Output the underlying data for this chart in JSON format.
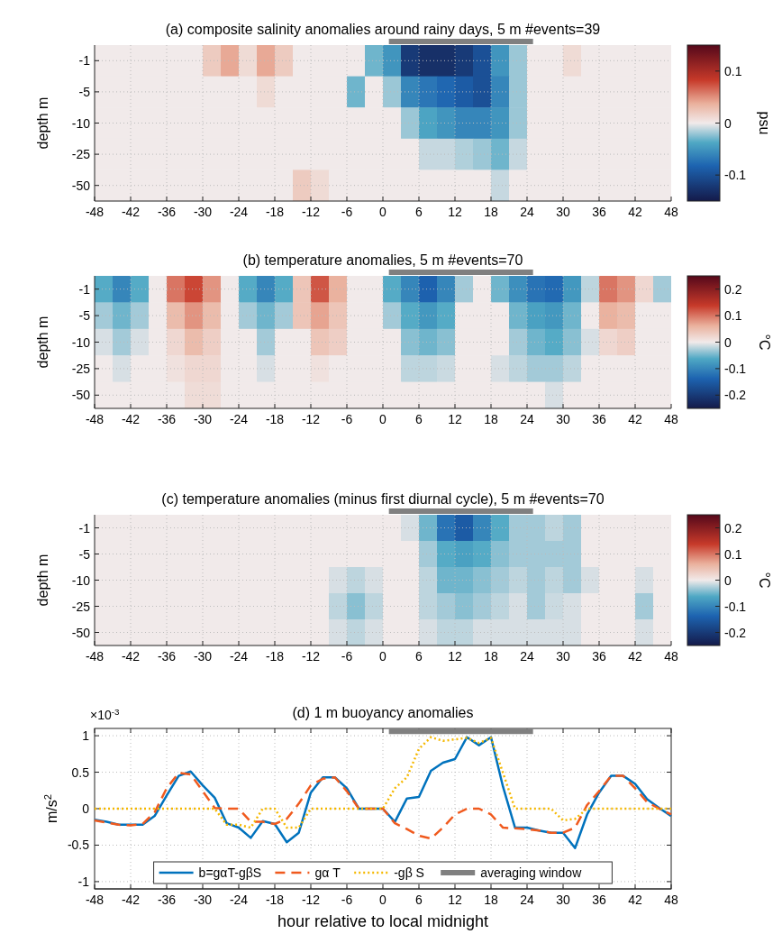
{
  "chart_data": [
    {
      "type": "heatmap",
      "title": "(a) composite salinity anomalies around rainy days, 5 m #events=39",
      "ylabel": "depth m",
      "clabel": "psu",
      "x": [
        -46.5,
        -43.5,
        -40.5,
        -37.5,
        -34.5,
        -31.5,
        -28.5,
        -25.5,
        -22.5,
        -19.5,
        -16.5,
        -13.5,
        -10.5,
        -7.5,
        -4.5,
        -1.5,
        1.5,
        4.5,
        7.5,
        10.5,
        13.5,
        16.5,
        19.5,
        22.5,
        25.5,
        28.5,
        31.5,
        34.5,
        37.5,
        40.5,
        43.5,
        46.5
      ],
      "xlim": [
        -48,
        48
      ],
      "xticks": [
        -48,
        -42,
        -36,
        -30,
        -24,
        -18,
        -12,
        -6,
        0,
        6,
        12,
        18,
        24,
        30,
        36,
        42,
        48
      ],
      "y_categories": [
        "-1",
        "-5",
        "-10",
        "-25",
        "-50"
      ],
      "cells": [
        [
          0,
          0,
          0,
          0,
          0,
          0,
          0.02,
          0.04,
          0.01,
          0.04,
          0.02,
          0,
          0,
          0,
          0,
          -0.03,
          -0.05,
          -0.12,
          -0.13,
          -0.13,
          -0.12,
          -0.1,
          -0.05,
          -0.02,
          0,
          0,
          0.01,
          0,
          0,
          0,
          0,
          0
        ],
        [
          0,
          0,
          0,
          0,
          0,
          0,
          0,
          0,
          0,
          0.01,
          0,
          0,
          0,
          0,
          -0.03,
          0,
          -0.02,
          -0.06,
          -0.07,
          -0.08,
          -0.09,
          -0.1,
          -0.06,
          -0.02,
          0,
          0,
          0,
          0,
          0,
          0,
          0,
          0
        ],
        [
          0,
          0,
          0,
          0,
          0,
          0,
          0,
          0,
          0,
          0,
          0,
          0,
          0,
          0,
          0,
          0,
          0,
          -0.02,
          -0.04,
          -0.05,
          -0.06,
          -0.06,
          -0.05,
          -0.02,
          0,
          0,
          0,
          0,
          0,
          0,
          0,
          0
        ],
        [
          0,
          0,
          0,
          0,
          0,
          0,
          0,
          0,
          0,
          0,
          0,
          0,
          0,
          0,
          0,
          0,
          0,
          0,
          -0.01,
          -0.01,
          -0.015,
          -0.02,
          -0.03,
          -0.01,
          0,
          0,
          0,
          0,
          0,
          0,
          0,
          0
        ],
        [
          0,
          0,
          0,
          0,
          0,
          0,
          0,
          0,
          0,
          0,
          0,
          0.02,
          0.01,
          0,
          0,
          0,
          0,
          0,
          0,
          0,
          0,
          0,
          -0.01,
          0,
          0,
          0,
          0,
          0,
          0,
          0,
          0,
          0
        ]
      ],
      "clim": [
        -0.15,
        0.15
      ],
      "cticks": [
        -0.1,
        0,
        0.1
      ],
      "grid": true
    },
    {
      "type": "heatmap",
      "title": "(b) temperature anomalies, 5 m #events=70",
      "ylabel": "depth m",
      "clabel": "°C",
      "x": [
        -46.5,
        -43.5,
        -40.5,
        -37.5,
        -34.5,
        -31.5,
        -28.5,
        -25.5,
        -22.5,
        -19.5,
        -16.5,
        -13.5,
        -10.5,
        -7.5,
        -4.5,
        -1.5,
        1.5,
        4.5,
        7.5,
        10.5,
        13.5,
        16.5,
        19.5,
        22.5,
        25.5,
        28.5,
        31.5,
        34.5,
        37.5,
        40.5,
        43.5,
        46.5
      ],
      "xlim": [
        -48,
        48
      ],
      "xticks": [
        -48,
        -42,
        -36,
        -30,
        -24,
        -18,
        -12,
        -6,
        0,
        6,
        12,
        18,
        24,
        30,
        36,
        42,
        48
      ],
      "y_categories": [
        "-1",
        "-5",
        "-10",
        "-25",
        "-50"
      ],
      "cells": [
        [
          -0.06,
          -0.1,
          -0.06,
          0,
          0.1,
          0.13,
          0.08,
          0,
          -0.06,
          -0.1,
          -0.06,
          0.04,
          0.12,
          0.06,
          0,
          0,
          -0.06,
          -0.1,
          -0.14,
          -0.1,
          -0.03,
          0,
          -0.05,
          -0.09,
          -0.12,
          -0.13,
          -0.08,
          -0.02,
          0.1,
          0.08,
          0.02,
          -0.03
        ],
        [
          -0.03,
          -0.05,
          -0.03,
          0,
          0.05,
          0.08,
          0.05,
          0,
          -0.03,
          -0.05,
          -0.03,
          0.04,
          0.07,
          0.04,
          0,
          0,
          -0.03,
          -0.06,
          -0.08,
          -0.06,
          0,
          0,
          0,
          -0.05,
          -0.07,
          -0.08,
          -0.05,
          0,
          0.06,
          0.05,
          0,
          0
        ],
        [
          -0.01,
          -0.03,
          -0.01,
          0,
          0.02,
          0.05,
          0.03,
          0,
          0,
          -0.03,
          0,
          0,
          0.04,
          0.03,
          0,
          0,
          0,
          -0.04,
          -0.05,
          -0.04,
          0,
          0,
          0,
          -0.03,
          -0.05,
          -0.06,
          -0.04,
          -0.01,
          0.02,
          0.03,
          0,
          0
        ],
        [
          0,
          -0.01,
          0,
          0,
          0.01,
          0.02,
          0.02,
          0,
          0,
          -0.01,
          0,
          0,
          0.01,
          0,
          0,
          0,
          0,
          -0.02,
          -0.02,
          -0.015,
          0,
          0,
          -0.01,
          -0.02,
          -0.03,
          -0.03,
          -0.02,
          0,
          0,
          0,
          0,
          0
        ],
        [
          0,
          0,
          0,
          0,
          0,
          0.015,
          0.015,
          0,
          0,
          0,
          0,
          0,
          0,
          0,
          0,
          0,
          0,
          0,
          0,
          0,
          0,
          0,
          0,
          0,
          0,
          -0.01,
          0,
          0,
          0,
          0,
          0,
          0
        ]
      ],
      "clim": [
        -0.25,
        0.25
      ],
      "cticks": [
        -0.2,
        -0.1,
        0,
        0.1,
        0.2
      ],
      "grid": true
    },
    {
      "type": "heatmap",
      "title": "(c) temperature anomalies (minus first diurnal cycle), 5 m #events=70",
      "ylabel": "depth m",
      "clabel": "°C",
      "x": [
        -46.5,
        -43.5,
        -40.5,
        -37.5,
        -34.5,
        -31.5,
        -28.5,
        -25.5,
        -22.5,
        -19.5,
        -16.5,
        -13.5,
        -10.5,
        -7.5,
        -4.5,
        -1.5,
        1.5,
        4.5,
        7.5,
        10.5,
        13.5,
        16.5,
        19.5,
        22.5,
        25.5,
        28.5,
        31.5,
        34.5,
        37.5,
        40.5,
        43.5,
        46.5
      ],
      "xlim": [
        -48,
        48
      ],
      "xticks": [
        -48,
        -42,
        -36,
        -30,
        -24,
        -18,
        -12,
        -6,
        0,
        6,
        12,
        18,
        24,
        30,
        36,
        42,
        48
      ],
      "y_categories": [
        "-1",
        "-5",
        "-10",
        "-25",
        "-50"
      ],
      "cells": [
        [
          0,
          0,
          0,
          0,
          0,
          0,
          0,
          0,
          0,
          0,
          0,
          0,
          0,
          0,
          0,
          0,
          0,
          -0.01,
          -0.05,
          -0.12,
          -0.15,
          -0.1,
          -0.06,
          -0.03,
          -0.03,
          -0.02,
          -0.03,
          0,
          0,
          0,
          0,
          0
        ],
        [
          0,
          0,
          0,
          0,
          0,
          0,
          0,
          0,
          0,
          0,
          0,
          0,
          0,
          0,
          0,
          0,
          0,
          0,
          -0.03,
          -0.06,
          -0.07,
          -0.06,
          -0.04,
          -0.03,
          -0.03,
          -0.03,
          -0.03,
          0,
          0,
          0,
          0,
          0
        ],
        [
          0,
          0,
          0,
          0,
          0,
          0,
          0,
          0,
          0,
          0,
          0,
          0,
          0,
          -0.01,
          -0.02,
          -0.01,
          0,
          0,
          -0.02,
          -0.05,
          -0.05,
          -0.04,
          -0.03,
          -0.02,
          -0.03,
          -0.02,
          -0.03,
          -0.01,
          0,
          0,
          -0.01,
          0
        ],
        [
          0,
          0,
          0,
          0,
          0,
          0,
          0,
          0,
          0,
          0,
          0,
          0,
          0,
          -0.02,
          -0.04,
          -0.02,
          0,
          0,
          -0.02,
          -0.03,
          -0.04,
          -0.03,
          -0.02,
          -0.01,
          -0.03,
          -0.015,
          -0.01,
          0,
          0,
          0,
          -0.03,
          0
        ],
        [
          0,
          0,
          0,
          0,
          0,
          0,
          0,
          0,
          0,
          0,
          0,
          0,
          0,
          -0.01,
          -0.02,
          -0.01,
          0,
          0,
          -0.01,
          -0.02,
          -0.02,
          -0.01,
          -0.01,
          -0.01,
          -0.01,
          -0.01,
          -0.01,
          0,
          0,
          0,
          -0.01,
          0
        ]
      ],
      "clim": [
        -0.25,
        0.25
      ],
      "cticks": [
        -0.2,
        -0.1,
        0,
        0.1,
        0.2
      ],
      "grid": true
    },
    {
      "type": "line",
      "title": "(d) 1 m buoyancy anomalies",
      "xlabel": "hour relative to local midnight",
      "ylabel": "m/s$^{2}$",
      "annotations": [
        "×10$^{-3}$"
      ],
      "x": [
        -48,
        -46,
        -44,
        -42,
        -40,
        -38,
        -36,
        -34,
        -32,
        -30,
        -28,
        -26,
        -24,
        -22,
        -20,
        -18,
        -16,
        -14,
        -12,
        -10,
        -8,
        -6,
        -4,
        -2,
        0,
        2,
        4,
        6,
        8,
        10,
        12,
        14,
        16,
        18,
        20,
        22,
        24,
        26,
        28,
        30,
        32,
        34,
        36,
        38,
        40,
        42,
        44,
        46,
        48
      ],
      "series": [
        {
          "name": "b=gαT-gβS",
          "color": "#0072bd",
          "line_style": "solid",
          "values": [
            -0.15,
            -0.18,
            -0.22,
            -0.22,
            -0.22,
            -0.1,
            0.18,
            0.45,
            0.51,
            0.32,
            0.15,
            -0.2,
            -0.26,
            -0.4,
            -0.17,
            -0.21,
            -0.46,
            -0.33,
            0.22,
            0.43,
            0.43,
            0.28,
            0,
            0,
            0,
            -0.18,
            0.14,
            0.16,
            0.52,
            0.63,
            0.68,
            0.98,
            0.87,
            0.98,
            0.3,
            -0.26,
            -0.26,
            -0.3,
            -0.33,
            -0.33,
            -0.54,
            -0.08,
            0.22,
            0.45,
            0.45,
            0.34,
            0.13,
            0.01,
            -0.1
          ]
        },
        {
          "name": "gα T",
          "color": "#f05a1e",
          "line_style": "dashed",
          "values": [
            -0.16,
            -0.19,
            -0.22,
            -0.23,
            -0.21,
            -0.05,
            0.28,
            0.49,
            0.47,
            0.24,
            0.01,
            0,
            0,
            -0.18,
            -0.18,
            -0.21,
            -0.14,
            0.07,
            0.32,
            0.41,
            0.43,
            0.24,
            0,
            0,
            0,
            -0.2,
            -0.28,
            -0.37,
            -0.41,
            -0.26,
            -0.08,
            0,
            0,
            -0.08,
            -0.26,
            -0.27,
            -0.28,
            -0.3,
            -0.33,
            -0.33,
            -0.26,
            0.05,
            0.24,
            0.45,
            0.45,
            0.28,
            0.09,
            0,
            -0.08
          ]
        },
        {
          "name": "-gβ S",
          "color": "#f5b800",
          "line_style": "dotted",
          "values": [
            0,
            0,
            0,
            0,
            0,
            0,
            0,
            0,
            0,
            0,
            0,
            -0.22,
            -0.22,
            -0.26,
            0,
            0,
            -0.26,
            -0.26,
            0,
            0,
            0,
            0,
            0,
            0,
            0,
            0.28,
            0.43,
            0.82,
            0.98,
            0.93,
            0.95,
            0.97,
            0.9,
            0.97,
            0.49,
            0,
            0,
            0,
            0,
            -0.16,
            -0.14,
            0,
            0,
            0,
            0,
            0,
            0,
            0,
            0
          ]
        },
        {
          "name": "averaging window",
          "type": "line",
          "color": "#808080",
          "line_style": "solid",
          "x": [
            1,
            25
          ],
          "values": [
            1.06,
            1.06
          ]
        }
      ],
      "xlim": [
        -48,
        48
      ],
      "xticks": [
        -48,
        -42,
        -36,
        -30,
        -24,
        -18,
        -12,
        -6,
        0,
        6,
        12,
        18,
        24,
        30,
        36,
        42,
        48
      ],
      "ylim": [
        -1.1,
        1.1
      ],
      "yticks": [
        -1,
        -0.5,
        0,
        0.5,
        1
      ],
      "grid": true,
      "legend": "bottom"
    }
  ]
}
